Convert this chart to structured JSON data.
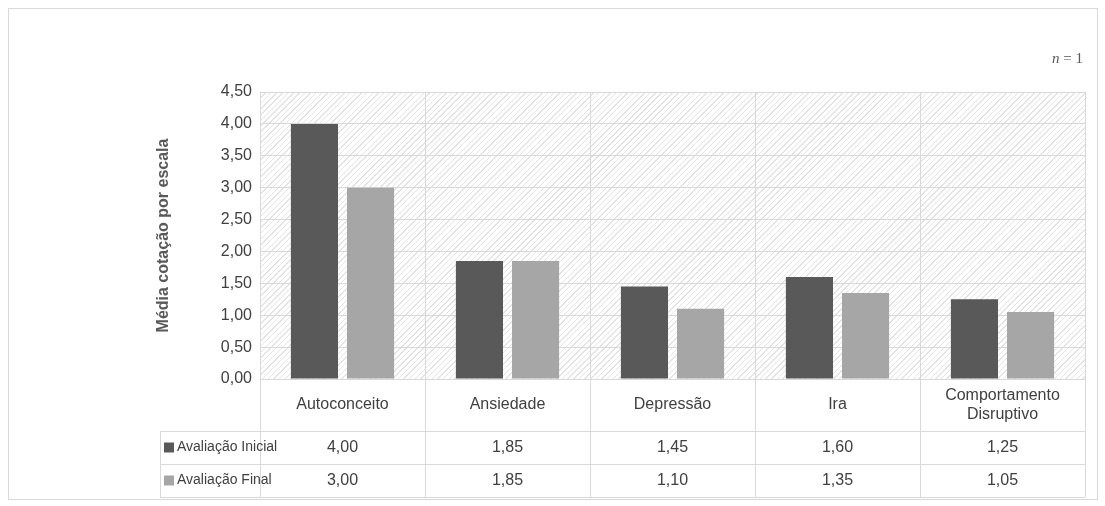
{
  "chart_data": {
    "type": "bar",
    "ylabel": "Média cotação por escala",
    "categories": [
      "Autoconceito",
      "Ansiedade",
      "Depressão",
      "Ira",
      "Comportamento Disruptivo"
    ],
    "series": [
      {
        "name": "Avaliação Inicial",
        "color": "#595959",
        "values": [
          4.0,
          1.85,
          1.45,
          1.6,
          1.25
        ],
        "value_labels": [
          "4,00",
          "1,85",
          "1,45",
          "1,60",
          "1,25"
        ]
      },
      {
        "name": "Avaliação Final",
        "color": "#a6a6a6",
        "values": [
          3.0,
          1.85,
          1.1,
          1.35,
          1.05
        ],
        "value_labels": [
          "3,00",
          "1,85",
          "1,10",
          "1,35",
          "1,05"
        ]
      }
    ],
    "ylim": [
      0,
      4.5
    ],
    "yticks": [
      {
        "value": 0,
        "label": "0,00"
      },
      {
        "value": 0.5,
        "label": "0,50"
      },
      {
        "value": 1,
        "label": "1,00"
      },
      {
        "value": 1.5,
        "label": "1,50"
      },
      {
        "value": 2,
        "label": "2,00"
      },
      {
        "value": 2.5,
        "label": "2,50"
      },
      {
        "value": 3,
        "label": "3,00"
      },
      {
        "value": 3.5,
        "label": "3,50"
      },
      {
        "value": 4,
        "label": "4,00"
      },
      {
        "value": 4.5,
        "label": "4,50"
      }
    ],
    "grid": true,
    "legend": "bottom",
    "annotations": [
      "n = 1"
    ]
  }
}
